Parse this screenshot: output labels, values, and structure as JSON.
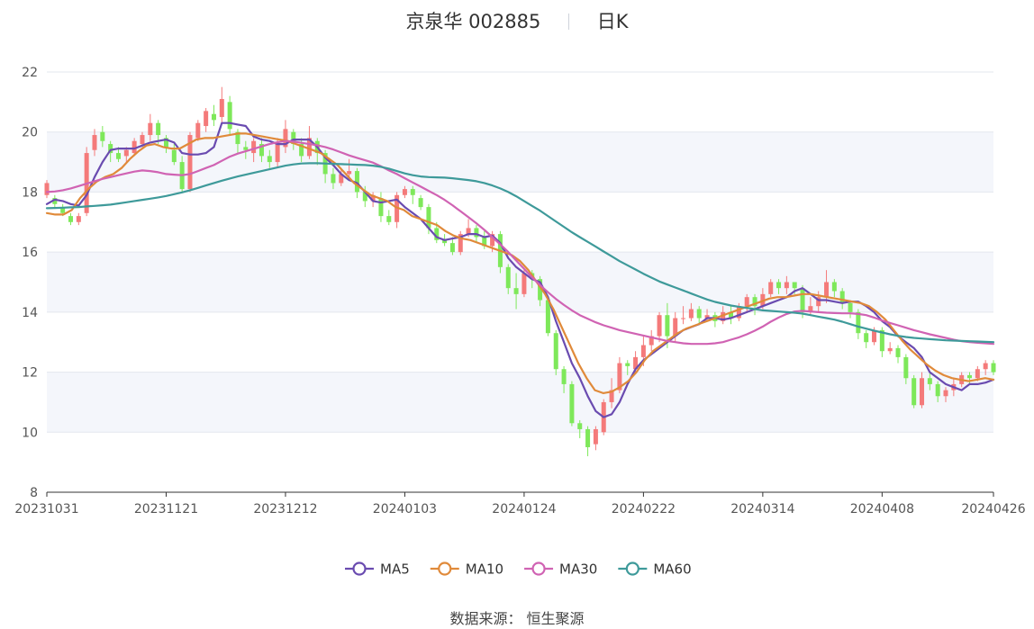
{
  "header": {
    "stock": "京泉华 002885",
    "period": "日K"
  },
  "source": "数据来源： 恒生聚源",
  "colors": {
    "up": "#f47a7a",
    "down": "#7ee85a",
    "ma5": "#6a4bb0",
    "ma10": "#e08a3a",
    "ma30": "#d063b3",
    "ma60": "#3e9a9a"
  },
  "chart_data": {
    "type": "line",
    "title": "京泉华 002885 日K",
    "ylim": [
      8,
      22
    ],
    "yticks": [
      8,
      10,
      12,
      14,
      16,
      18,
      20,
      22
    ],
    "xlabels": [
      "20231031",
      "20231121",
      "20231212",
      "20240103",
      "20240124",
      "20240222",
      "20240314",
      "20240408",
      "20240426"
    ],
    "xlabel_index": [
      0,
      15,
      30,
      45,
      60,
      75,
      90,
      105,
      119
    ],
    "legend": [
      "MA5",
      "MA10",
      "MA30",
      "MA60"
    ],
    "legend_position": "bottom",
    "grid": true,
    "series": [
      {
        "name": "MA5",
        "values": [
          17.6,
          17.75,
          17.7,
          17.6,
          17.55,
          17.9,
          18.5,
          19.0,
          19.4,
          19.45,
          19.45,
          19.45,
          19.55,
          19.65,
          19.7,
          19.75,
          19.65,
          19.3,
          19.25,
          19.25,
          19.3,
          19.5,
          20.3,
          20.3,
          20.25,
          20.2,
          19.85,
          19.75,
          19.7,
          19.6,
          19.6,
          19.75,
          19.75,
          19.75,
          19.5,
          19.15,
          18.9,
          18.6,
          18.4,
          18.3,
          18.0,
          17.7,
          17.65,
          17.7,
          17.75,
          17.5,
          17.3,
          17.1,
          16.8,
          16.5,
          16.4,
          16.45,
          16.5,
          16.6,
          16.6,
          16.5,
          16.55,
          16.3,
          15.8,
          15.5,
          15.3,
          15.1,
          15.0,
          14.5,
          13.7,
          13.0,
          12.3,
          11.8,
          11.2,
          10.7,
          10.5,
          10.6,
          11.0,
          11.6,
          12.1,
          12.4,
          12.6,
          12.8,
          13.0,
          13.2,
          13.4,
          13.5,
          13.6,
          13.8,
          13.8,
          13.75,
          13.8,
          13.9,
          14.0,
          14.1,
          14.2,
          14.3,
          14.4,
          14.5,
          14.7,
          14.8,
          14.6,
          14.4,
          14.4,
          14.35,
          14.3,
          14.35,
          14.35,
          14.2,
          14.0,
          13.7,
          13.5,
          13.2,
          13.0,
          12.8,
          12.5,
          12.0,
          11.8,
          11.6,
          11.5,
          11.4,
          11.6,
          11.6,
          11.65,
          11.75
        ]
      },
      {
        "name": "MA10",
        "values": [
          17.3,
          17.25,
          17.25,
          17.4,
          17.8,
          18.1,
          18.35,
          18.5,
          18.6,
          18.8,
          19.1,
          19.35,
          19.55,
          19.6,
          19.5,
          19.45,
          19.45,
          19.6,
          19.75,
          19.8,
          19.8,
          19.85,
          19.9,
          19.95,
          19.95,
          19.9,
          19.85,
          19.8,
          19.75,
          19.7,
          19.6,
          19.5,
          19.4,
          19.3,
          19.1,
          18.9,
          18.6,
          18.3,
          18.1,
          17.9,
          17.8,
          17.7,
          17.5,
          17.4,
          17.2,
          17.1,
          17.0,
          16.9,
          16.7,
          16.55,
          16.45,
          16.4,
          16.3,
          16.2,
          16.1,
          16.0,
          15.9,
          15.7,
          15.4,
          15.0,
          14.6,
          14.1,
          13.5,
          12.9,
          12.3,
          11.8,
          11.4,
          11.3,
          11.35,
          11.5,
          11.7,
          12.0,
          12.4,
          12.7,
          12.9,
          13.1,
          13.3,
          13.45,
          13.55,
          13.65,
          13.75,
          13.85,
          13.95,
          14.05,
          14.15,
          14.25,
          14.35,
          14.45,
          14.5,
          14.5,
          14.55,
          14.6,
          14.6,
          14.55,
          14.5,
          14.45,
          14.4,
          14.35,
          14.3,
          14.2,
          14.0,
          13.75,
          13.4,
          13.05,
          12.75,
          12.5,
          12.25,
          12.05,
          11.9,
          11.8,
          11.75,
          11.7,
          11.75,
          11.8,
          11.75
        ]
      },
      {
        "name": "MA30",
        "values": [
          18.0,
          18.02,
          18.06,
          18.12,
          18.2,
          18.28,
          18.36,
          18.44,
          18.5,
          18.56,
          18.62,
          18.68,
          18.72,
          18.7,
          18.66,
          18.6,
          18.58,
          18.56,
          18.6,
          18.7,
          18.8,
          18.9,
          19.04,
          19.18,
          19.28,
          19.36,
          19.44,
          19.52,
          19.6,
          19.66,
          19.7,
          19.68,
          19.64,
          19.6,
          19.56,
          19.5,
          19.42,
          19.32,
          19.22,
          19.14,
          19.06,
          18.98,
          18.86,
          18.72,
          18.6,
          18.46,
          18.32,
          18.18,
          18.04,
          17.9,
          17.74,
          17.56,
          17.36,
          17.16,
          16.96,
          16.74,
          16.5,
          16.26,
          16.0,
          15.72,
          15.44,
          15.16,
          14.9,
          14.66,
          14.44,
          14.24,
          14.06,
          13.9,
          13.78,
          13.66,
          13.56,
          13.48,
          13.4,
          13.34,
          13.28,
          13.22,
          13.16,
          13.1,
          13.04,
          13.0,
          12.96,
          12.94,
          12.94,
          12.94,
          12.96,
          13.0,
          13.08,
          13.16,
          13.26,
          13.38,
          13.52,
          13.68,
          13.82,
          13.94,
          14.02,
          14.04,
          14.02,
          14.0,
          13.98,
          13.97,
          13.96,
          13.96,
          13.94,
          13.9,
          13.82,
          13.72,
          13.64,
          13.56,
          13.48,
          13.4,
          13.33,
          13.26,
          13.2,
          13.14,
          13.08,
          13.03,
          13.0,
          12.98,
          12.96,
          12.94
        ]
      },
      {
        "name": "MA60",
        "values": [
          17.46,
          17.47,
          17.48,
          17.49,
          17.5,
          17.52,
          17.54,
          17.56,
          17.58,
          17.62,
          17.66,
          17.7,
          17.74,
          17.78,
          17.82,
          17.87,
          17.93,
          17.99,
          18.06,
          18.14,
          18.22,
          18.3,
          18.38,
          18.45,
          18.52,
          18.58,
          18.64,
          18.7,
          18.76,
          18.82,
          18.88,
          18.92,
          18.95,
          18.96,
          18.96,
          18.95,
          18.94,
          18.93,
          18.92,
          18.91,
          18.9,
          18.88,
          18.84,
          18.78,
          18.7,
          18.62,
          18.56,
          18.52,
          18.5,
          18.49,
          18.48,
          18.46,
          18.43,
          18.4,
          18.36,
          18.3,
          18.22,
          18.12,
          18.0,
          17.86,
          17.7,
          17.54,
          17.38,
          17.2,
          17.02,
          16.84,
          16.66,
          16.5,
          16.34,
          16.18,
          16.02,
          15.86,
          15.7,
          15.56,
          15.42,
          15.28,
          15.15,
          15.02,
          14.92,
          14.82,
          14.72,
          14.62,
          14.52,
          14.42,
          14.34,
          14.28,
          14.22,
          14.18,
          14.14,
          14.1,
          14.06,
          14.04,
          14.02,
          14.0,
          13.98,
          13.95,
          13.9,
          13.85,
          13.8,
          13.75,
          13.68,
          13.6,
          13.52,
          13.45,
          13.38,
          13.32,
          13.26,
          13.21,
          13.17,
          13.14,
          13.12,
          13.1,
          13.08,
          13.06,
          13.05,
          13.04,
          13.03,
          13.02,
          13.01,
          13.0
        ]
      }
    ],
    "candles": [
      [
        17.9,
        18.3,
        17.8,
        18.4
      ],
      [
        17.8,
        17.6,
        17.5,
        17.9
      ],
      [
        17.5,
        17.3,
        17.2,
        17.6
      ],
      [
        17.2,
        17.0,
        16.9,
        17.3
      ],
      [
        17.0,
        17.2,
        16.9,
        17.3
      ],
      [
        17.3,
        19.3,
        17.2,
        19.5
      ],
      [
        19.4,
        19.9,
        19.2,
        20.1
      ],
      [
        20.0,
        19.7,
        19.5,
        20.2
      ],
      [
        19.6,
        19.3,
        19.0,
        19.7
      ],
      [
        19.3,
        19.1,
        19.0,
        19.5
      ],
      [
        19.2,
        19.4,
        19.0,
        19.5
      ],
      [
        19.3,
        19.7,
        19.2,
        19.8
      ],
      [
        19.6,
        19.9,
        19.5,
        20.0
      ],
      [
        19.9,
        20.3,
        19.7,
        20.6
      ],
      [
        20.3,
        19.9,
        19.6,
        20.4
      ],
      [
        19.8,
        19.5,
        19.3,
        19.9
      ],
      [
        19.4,
        19.0,
        18.9,
        19.6
      ],
      [
        19.0,
        18.1,
        18.0,
        19.2
      ],
      [
        18.1,
        19.9,
        18.0,
        20.0
      ],
      [
        19.8,
        20.3,
        19.7,
        20.4
      ],
      [
        20.2,
        20.7,
        20.0,
        20.8
      ],
      [
        20.6,
        20.4,
        20.2,
        20.9
      ],
      [
        20.5,
        21.1,
        20.3,
        21.5
      ],
      [
        21.0,
        20.1,
        19.9,
        21.2
      ],
      [
        20.0,
        19.6,
        19.3,
        20.1
      ],
      [
        19.5,
        19.4,
        19.1,
        19.7
      ],
      [
        19.3,
        19.7,
        19.0,
        19.8
      ],
      [
        19.6,
        19.2,
        19.0,
        19.8
      ],
      [
        19.2,
        19.0,
        18.8,
        19.4
      ],
      [
        19.0,
        19.6,
        18.8,
        19.8
      ],
      [
        19.5,
        20.1,
        19.3,
        20.4
      ],
      [
        20.0,
        19.6,
        19.4,
        20.1
      ],
      [
        19.6,
        19.2,
        19.0,
        19.8
      ],
      [
        19.2,
        19.8,
        19.1,
        20.2
      ],
      [
        19.7,
        19.3,
        18.9,
        19.8
      ],
      [
        19.3,
        18.6,
        18.3,
        19.4
      ],
      [
        18.6,
        18.3,
        18.1,
        18.8
      ],
      [
        18.3,
        18.6,
        18.2,
        18.8
      ],
      [
        18.6,
        18.7,
        18.5,
        19.1
      ],
      [
        18.7,
        18.0,
        17.8,
        18.8
      ],
      [
        18.0,
        17.7,
        17.5,
        18.2
      ],
      [
        17.7,
        17.9,
        17.5,
        18.0
      ],
      [
        17.8,
        17.2,
        17.0,
        18.0
      ],
      [
        17.2,
        17.0,
        16.9,
        17.4
      ],
      [
        17.0,
        17.9,
        16.8,
        18.0
      ],
      [
        17.9,
        18.1,
        17.8,
        18.2
      ],
      [
        18.1,
        17.9,
        17.6,
        18.2
      ],
      [
        17.8,
        17.5,
        17.4,
        17.9
      ],
      [
        17.5,
        16.8,
        16.6,
        17.6
      ],
      [
        16.8,
        16.4,
        16.3,
        17.0
      ],
      [
        16.4,
        16.3,
        16.2,
        16.6
      ],
      [
        16.3,
        16.0,
        15.9,
        16.5
      ],
      [
        16.0,
        16.6,
        15.9,
        16.7
      ],
      [
        16.6,
        16.8,
        16.5,
        17.1
      ],
      [
        16.8,
        16.5,
        16.3,
        16.9
      ],
      [
        16.5,
        16.2,
        16.1,
        16.7
      ],
      [
        16.2,
        16.6,
        16.0,
        16.7
      ],
      [
        16.6,
        15.5,
        15.3,
        16.7
      ],
      [
        15.5,
        14.8,
        14.6,
        15.6
      ],
      [
        14.8,
        14.6,
        14.1,
        15.3
      ],
      [
        14.6,
        15.3,
        14.5,
        15.4
      ],
      [
        15.3,
        15.1,
        14.8,
        15.4
      ],
      [
        15.1,
        14.4,
        14.2,
        15.2
      ],
      [
        14.4,
        13.3,
        13.2,
        14.5
      ],
      [
        13.3,
        12.1,
        11.9,
        13.4
      ],
      [
        12.1,
        11.6,
        11.3,
        12.2
      ],
      [
        11.6,
        10.3,
        10.2,
        11.7
      ],
      [
        10.3,
        10.1,
        9.8,
        10.4
      ],
      [
        10.1,
        9.5,
        9.2,
        10.2
      ],
      [
        9.6,
        10.1,
        9.4,
        10.2
      ],
      [
        10.0,
        11.0,
        9.9,
        11.1
      ],
      [
        11.0,
        11.4,
        10.8,
        11.8
      ],
      [
        11.4,
        12.3,
        11.3,
        12.5
      ],
      [
        12.3,
        12.2,
        11.9,
        12.4
      ],
      [
        12.1,
        12.5,
        12.0,
        12.7
      ],
      [
        12.5,
        12.9,
        12.2,
        13.2
      ],
      [
        12.9,
        13.2,
        12.7,
        13.4
      ],
      [
        13.2,
        13.9,
        13.0,
        14.0
      ],
      [
        13.9,
        13.2,
        12.8,
        14.3
      ],
      [
        13.2,
        13.8,
        13.0,
        14.0
      ],
      [
        13.8,
        13.8,
        13.6,
        14.2
      ],
      [
        13.8,
        14.1,
        13.7,
        14.3
      ],
      [
        14.1,
        13.8,
        13.6,
        14.2
      ],
      [
        13.8,
        13.9,
        13.7,
        14.1
      ],
      [
        13.9,
        13.7,
        13.5,
        14.0
      ],
      [
        13.7,
        14.0,
        13.6,
        14.2
      ],
      [
        14.0,
        13.8,
        13.6,
        14.2
      ],
      [
        13.8,
        14.2,
        13.7,
        14.3
      ],
      [
        14.2,
        14.5,
        14.0,
        14.6
      ],
      [
        14.5,
        14.2,
        13.9,
        14.6
      ],
      [
        14.2,
        14.6,
        14.1,
        14.8
      ],
      [
        14.6,
        15.0,
        14.5,
        15.1
      ],
      [
        15.0,
        14.8,
        14.6,
        15.1
      ],
      [
        14.8,
        15.0,
        14.6,
        15.2
      ],
      [
        15.0,
        14.8,
        14.6,
        15.0
      ],
      [
        14.8,
        14.0,
        13.8,
        14.9
      ],
      [
        14.0,
        14.2,
        13.9,
        14.5
      ],
      [
        14.2,
        14.5,
        14.0,
        14.7
      ],
      [
        14.5,
        15.0,
        14.3,
        15.4
      ],
      [
        15.0,
        14.7,
        14.5,
        15.1
      ],
      [
        14.7,
        14.3,
        14.1,
        14.8
      ],
      [
        14.3,
        14.0,
        13.8,
        14.4
      ],
      [
        14.0,
        13.3,
        13.1,
        14.1
      ],
      [
        13.3,
        13.0,
        12.8,
        13.4
      ],
      [
        13.0,
        13.4,
        12.9,
        13.5
      ],
      [
        13.4,
        12.7,
        12.5,
        13.5
      ],
      [
        12.7,
        12.8,
        12.6,
        13.0
      ],
      [
        12.8,
        12.5,
        12.3,
        12.9
      ],
      [
        12.5,
        11.8,
        11.6,
        12.6
      ],
      [
        11.8,
        10.9,
        10.8,
        11.9
      ],
      [
        10.9,
        11.8,
        10.8,
        12.0
      ],
      [
        11.8,
        11.6,
        11.4,
        12.0
      ],
      [
        11.6,
        11.2,
        11.0,
        11.7
      ],
      [
        11.2,
        11.4,
        11.0,
        11.5
      ],
      [
        11.4,
        11.6,
        11.2,
        11.8
      ],
      [
        11.6,
        11.9,
        11.5,
        12.0
      ],
      [
        11.9,
        11.8,
        11.6,
        12.0
      ],
      [
        11.8,
        12.1,
        11.7,
        12.2
      ],
      [
        12.1,
        12.3,
        11.9,
        12.4
      ],
      [
        12.3,
        12.0,
        11.9,
        12.4
      ]
    ]
  }
}
